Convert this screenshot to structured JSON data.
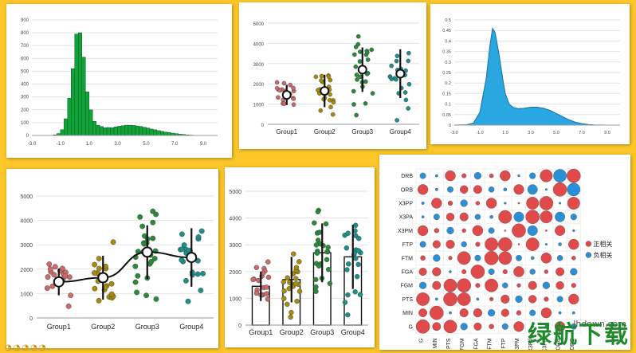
{
  "chart_data": [
    {
      "type": "bar",
      "subtype": "histogram",
      "color": "#11a33a",
      "ylim": [
        0,
        900
      ],
      "yticks": [
        0,
        100,
        200,
        300,
        400,
        500,
        600,
        700,
        800,
        900
      ],
      "xlim": [
        -3,
        10
      ],
      "xticks": [
        "-3.0",
        "-1.0",
        "1.0",
        "3.0",
        "5.0",
        "7.0",
        "9.0"
      ],
      "bin_start": -1.5,
      "bin_width": 0.25,
      "values": [
        5,
        15,
        45,
        130,
        290,
        520,
        790,
        800,
        610,
        340,
        200,
        110,
        80,
        70,
        60,
        62,
        60,
        66,
        72,
        76,
        80,
        80,
        78,
        74,
        70,
        64,
        58,
        50,
        44,
        38,
        32,
        26,
        22,
        18,
        14,
        10,
        8,
        5,
        3
      ],
      "grid": true
    },
    {
      "type": "scatter",
      "subtype": "jitter with mean and sd",
      "categories": [
        "Group1",
        "Group2",
        "Group3",
        "Group4"
      ],
      "colors": [
        "#c96b6b",
        "#a58b0e",
        "#2a8a3a",
        "#1f8f8a"
      ],
      "ylim": [
        0,
        5000
      ],
      "yticks": [
        0,
        1000,
        2000,
        3000,
        4000,
        5000
      ],
      "means": [
        1450,
        1650,
        2700,
        2500
      ],
      "sd": [
        500,
        800,
        1100,
        1200
      ],
      "grid": true
    },
    {
      "type": "area",
      "subtype": "density",
      "color": "#2aa6e0",
      "ylim": [
        0,
        0.5
      ],
      "yticks": [
        "0",
        "0.05",
        "0.1",
        "0.15",
        "0.2",
        "0.25",
        "0.3",
        "0.35",
        "0.4",
        "0.45",
        "0.5"
      ],
      "xlim": [
        -3,
        10
      ],
      "xticks": [
        "-3.0",
        "-1.0",
        "1.0",
        "3.0",
        "5.0",
        "7.0",
        "9.0"
      ],
      "x": [
        -3,
        -2,
        -1.5,
        -1,
        -0.5,
        -0.2,
        0,
        0.2,
        0.5,
        0.8,
        1,
        1.3,
        1.6,
        2,
        2.5,
        3,
        3.5,
        4,
        4.5,
        5,
        5.5,
        6,
        6.5,
        7,
        7.5,
        8,
        9,
        10
      ],
      "y": [
        0,
        0.002,
        0.01,
        0.06,
        0.22,
        0.38,
        0.46,
        0.44,
        0.34,
        0.22,
        0.15,
        0.1,
        0.085,
        0.078,
        0.08,
        0.085,
        0.085,
        0.08,
        0.07,
        0.055,
        0.04,
        0.025,
        0.014,
        0.007,
        0.003,
        0.001,
        0,
        0
      ],
      "grid": true
    },
    {
      "type": "line",
      "subtype": "jitter with mean, sd and smooth line",
      "categories": [
        "Group1",
        "Group2",
        "Group3",
        "Group4"
      ],
      "colors": [
        "#c96b6b",
        "#a58b0e",
        "#2a8a3a",
        "#1f8f8a"
      ],
      "ylim": [
        0,
        5000
      ],
      "yticks": [
        0,
        1000,
        2000,
        3000,
        4000,
        5000
      ],
      "means": [
        1480,
        1650,
        2700,
        2480
      ],
      "sd": [
        550,
        900,
        1100,
        1200
      ],
      "grid": true
    },
    {
      "type": "bar",
      "subtype": "mean bars with jitter and sd",
      "categories": [
        "Group1",
        "Group2",
        "Group3",
        "Group4"
      ],
      "colors": [
        "#c96b6b",
        "#a58b0e",
        "#2a8a3a",
        "#1f8f8a"
      ],
      "ylim": [
        0,
        5000
      ],
      "yticks": [
        0,
        1000,
        2000,
        3000,
        4000,
        5000
      ],
      "values": [
        1450,
        1700,
        2700,
        2550
      ],
      "sd": [
        550,
        850,
        1100,
        1200
      ],
      "grid": true
    },
    {
      "type": "heatmap",
      "subtype": "correlation bubble matrix",
      "variables": [
        "G",
        "MIN",
        "PTS",
        "FGM",
        "FGA",
        "FTM",
        "FTP",
        "X3PM",
        "X3PA",
        "X3PP",
        "ORB",
        "DRB"
      ],
      "legend": [
        "正相关",
        "负相关"
      ],
      "legend_placement": "right",
      "positive_color": "#e04a4a",
      "negative_color": "#2a8fd6",
      "grid": true
    }
  ],
  "watermark": {
    "site": "lhdown.com",
    "brand": "绿航下载",
    "icons": "◔◔◔◔◔"
  }
}
